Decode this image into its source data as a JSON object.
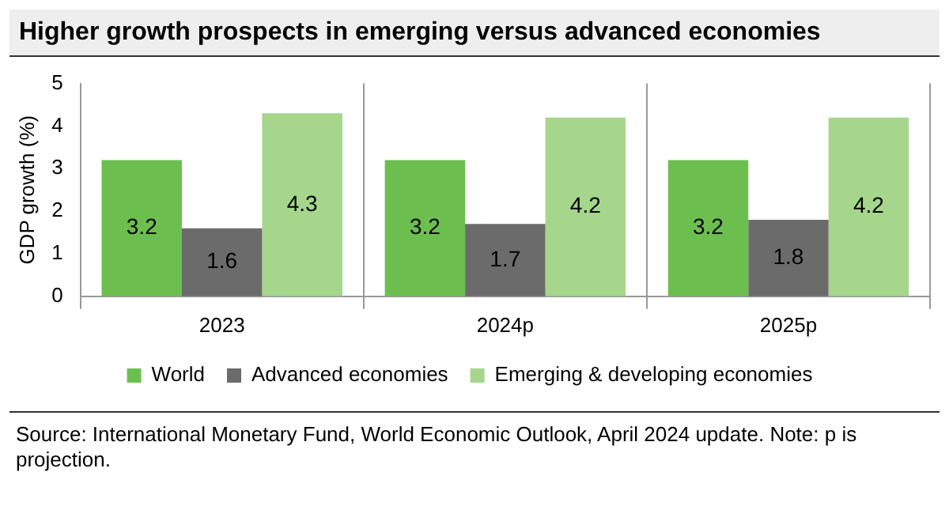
{
  "chart_data": {
    "type": "bar",
    "title": "Higher growth prospects in emerging versus advanced economies",
    "ylabel": "GDP growth (%)",
    "categories": [
      "2023",
      "2024p",
      "2025p"
    ],
    "series": [
      {
        "name": "World",
        "color": "#6cbf4f",
        "values": [
          3.2,
          3.2,
          3.2
        ]
      },
      {
        "name": "Advanced economies",
        "color": "#6b6b6b",
        "values": [
          1.6,
          1.7,
          1.8
        ]
      },
      {
        "name": "Emerging & developing economies",
        "color": "#a5d68c",
        "values": [
          4.3,
          4.2,
          4.2
        ]
      }
    ],
    "ylim": [
      0,
      5
    ],
    "yticks": [
      0,
      1,
      2,
      3,
      4,
      5
    ],
    "grid": "x",
    "legend": "bottom",
    "data_labels": true,
    "annotations": [
      "Source: International Monetary Fund, World Economic Outlook, April 2024 update. Note: p is projection."
    ]
  }
}
